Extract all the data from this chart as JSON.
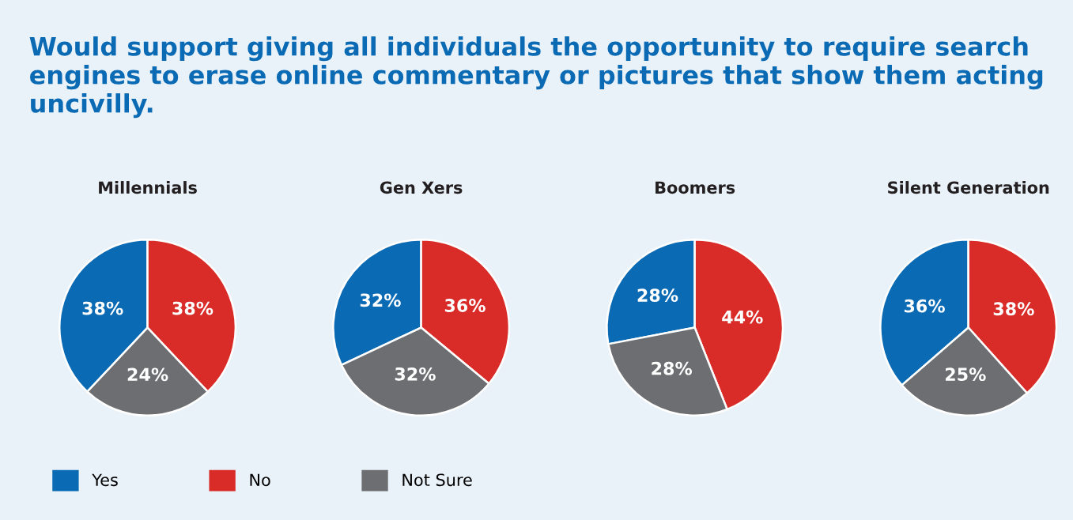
{
  "chart_data": [
    {
      "type": "pie",
      "title": "Millennials",
      "annotations": [
        "Would support giving all individuals the opportunity to require search engines to erase online commentary or pictures that show them acting uncivilly."
      ],
      "categories": [
        "Yes",
        "No",
        "Not Sure"
      ],
      "values": [
        38,
        38,
        24
      ],
      "value_labels": [
        "38%",
        "38%",
        "24%"
      ],
      "colors": [
        "#0b6ab4",
        "#d92b27",
        "#6d6e71"
      ],
      "legend": "bottom"
    },
    {
      "type": "pie",
      "title": "Gen Xers",
      "categories": [
        null,
        null,
        null
      ],
      "values": [
        32,
        36,
        32
      ],
      "value_labels": [
        "32%",
        "36%",
        "32%"
      ],
      "colors": [
        "#0b6ab4",
        "#d92b27",
        "#6d6e71"
      ]
    },
    {
      "type": "pie",
      "title": "Boomers",
      "categories": [
        null,
        null,
        null
      ],
      "values": [
        28,
        44,
        28
      ],
      "value_labels": [
        "28%",
        "44%",
        "28%"
      ],
      "colors": [
        "#0b6ab4",
        "#d92b27",
        "#6d6e71"
      ]
    },
    {
      "type": "pie",
      "title": "Silent Generation",
      "categories": [
        null,
        null,
        null
      ],
      "values": [
        36,
        38,
        25
      ],
      "value_labels": [
        "36%",
        "38%",
        "25%"
      ],
      "colors": [
        "#0b6ab4",
        "#d92b27",
        "#6d6e71"
      ]
    }
  ]
}
